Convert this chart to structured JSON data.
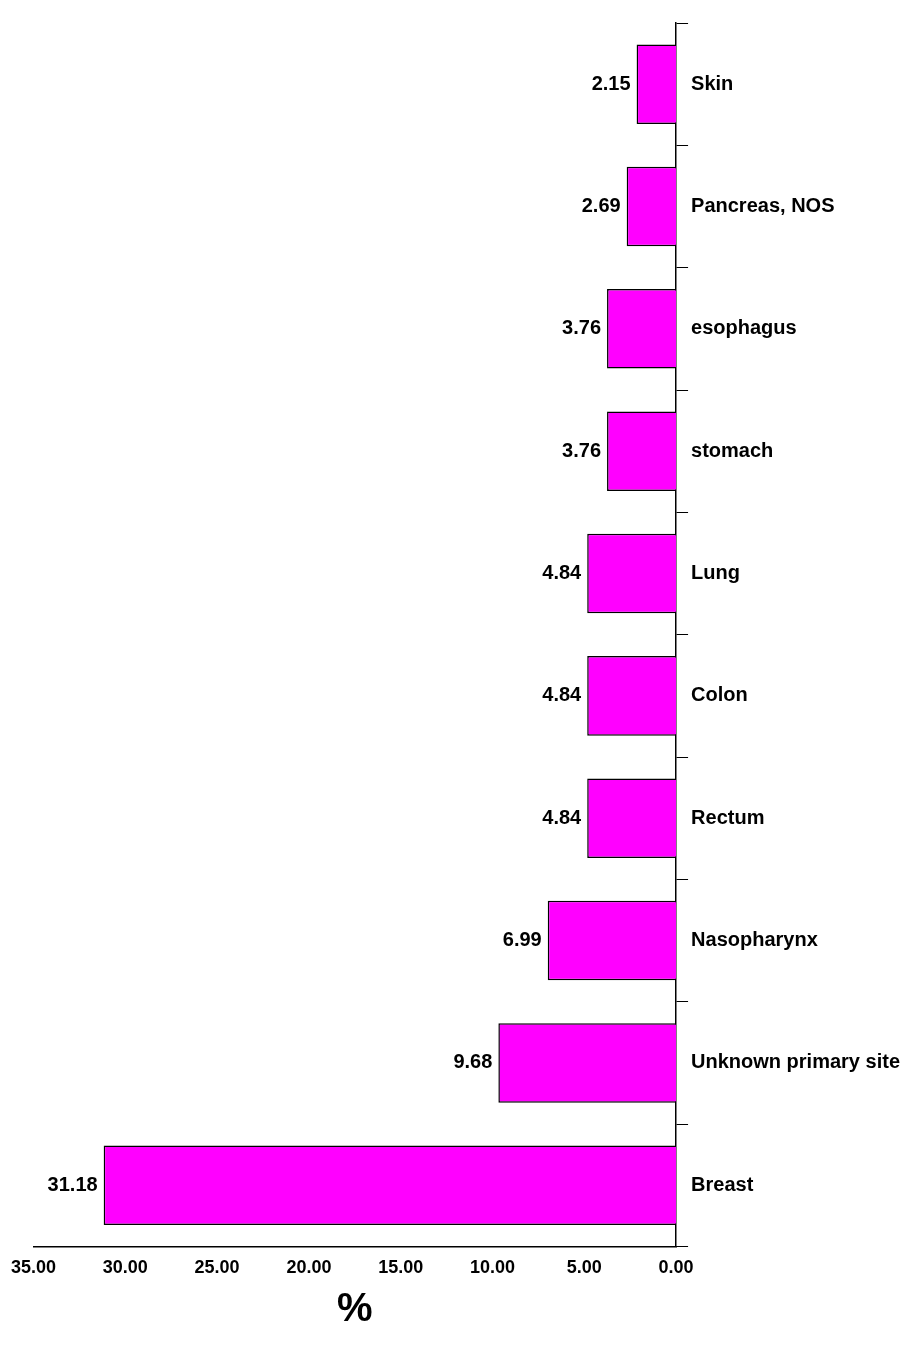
{
  "chart_data": {
    "type": "bar",
    "orientation": "horizontal",
    "xlabel": "%",
    "categories": [
      "Skin",
      "Pancreas, NOS",
      "esophagus",
      "stomach",
      "Lung",
      "Colon",
      "Rectum",
      "Nasopharynx",
      "Unknown primary site",
      "Breast"
    ],
    "values": [
      2.15,
      2.69,
      3.76,
      3.76,
      4.84,
      4.84,
      4.84,
      6.99,
      9.68,
      31.18
    ],
    "color": "#ff00ff",
    "data_labels": true,
    "grid": false,
    "legend": false,
    "xlim": [
      35,
      0
    ],
    "xticks": [
      {
        "value": 35,
        "label": "35.00"
      },
      {
        "value": 30,
        "label": "30.00"
      },
      {
        "value": 25,
        "label": "25.00"
      },
      {
        "value": 20,
        "label": "20.00"
      },
      {
        "value": 15,
        "label": "15.00"
      },
      {
        "value": 10,
        "label": "10.00"
      },
      {
        "value": 5,
        "label": "5.00"
      },
      {
        "value": 0,
        "label": "0.00"
      }
    ]
  }
}
